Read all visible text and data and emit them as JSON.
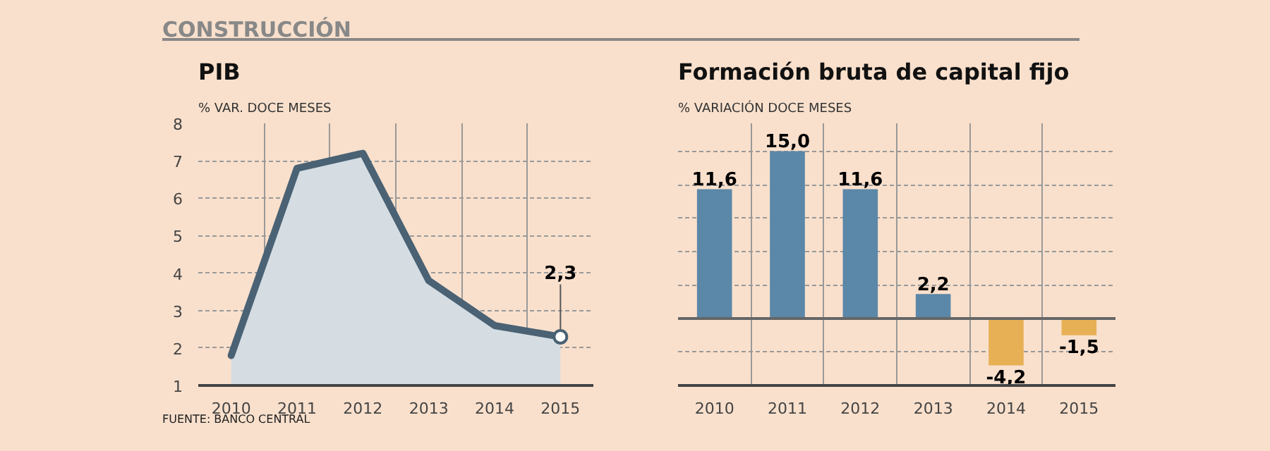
{
  "chart_data": [
    {
      "type": "area",
      "title": "PIB",
      "subtitle": "% VAR. DOCE MESES",
      "categories": [
        "2010",
        "2011",
        "2012",
        "2013",
        "2014",
        "2015"
      ],
      "series": [
        {
          "color": "#4a6274",
          "values": [
            1.8,
            6.8,
            7.2,
            3.8,
            2.6,
            2.3
          ],
          "value_labels": [
            null,
            null,
            null,
            null,
            null,
            "2,3"
          ]
        }
      ],
      "ylim": [
        1,
        8
      ],
      "yticks": [
        1,
        2,
        3,
        4,
        5,
        6,
        7,
        8
      ],
      "grid": true,
      "annotations": [
        "CONSTRUCCIÓN",
        "FUENTE: BANCO CENTRAL"
      ]
    },
    {
      "type": "bar",
      "title": "Formación bruta de capital fijo",
      "subtitle": "% VARIACIÓN DOCE MESES",
      "categories": [
        "2010",
        "2011",
        "2012",
        "2013",
        "2014",
        "2015"
      ],
      "values": [
        11.6,
        15.0,
        11.6,
        2.2,
        -4.2,
        -1.5
      ],
      "colors": [
        "#5b87a8",
        "#5b87a8",
        "#5b87a8",
        "#5b87a8",
        "#e8b055",
        "#e8b055"
      ],
      "value_labels": [
        "11,6",
        "15,0",
        "11,6",
        "2,2",
        "-4,2",
        "-1,5"
      ],
      "ylim": [
        -6,
        17.5
      ],
      "yticks": [
        {
          "value": -6,
          "label": null
        },
        {
          "value": -3,
          "label": null
        },
        {
          "value": 0,
          "label": null
        },
        {
          "value": 3,
          "label": null
        },
        {
          "value": 6,
          "label": null
        },
        {
          "value": 9,
          "label": null
        },
        {
          "value": 12,
          "label": null
        },
        {
          "value": 15,
          "label": null
        }
      ],
      "tick_labels": "x",
      "grid": true,
      "ref_lines": [
        {
          "axis": "y",
          "value": 0,
          "color": "#666666"
        }
      ]
    }
  ]
}
